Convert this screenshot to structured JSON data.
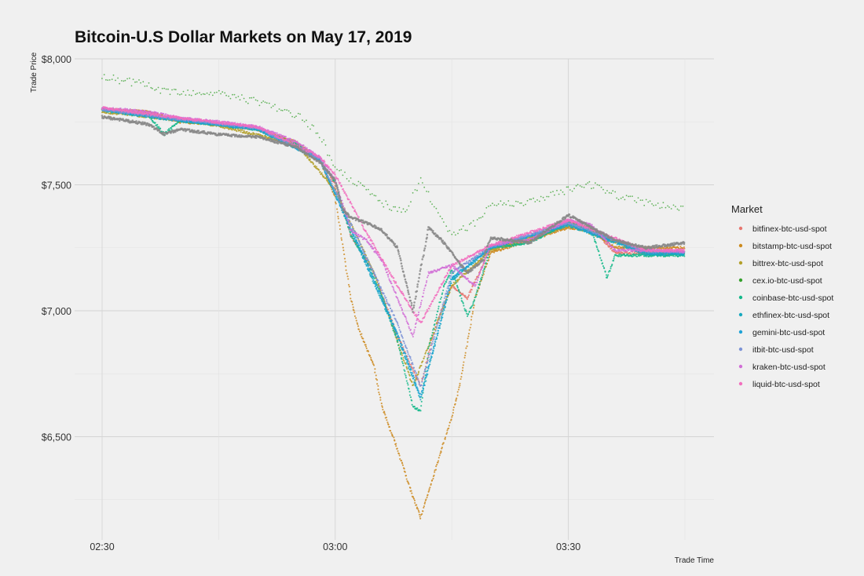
{
  "chart_data": {
    "type": "scatter",
    "title": "Bitcoin-U.S Dollar Markets on May 17, 2019",
    "xlabel": "Trade Time",
    "ylabel": "Trade Price",
    "x_ticks": [
      "02:30",
      "03:00",
      "03:30"
    ],
    "y_ticks": [
      "$6,500",
      "$7,000",
      "$7,500",
      "$8,000"
    ],
    "xlim": [
      "02:30",
      "03:45"
    ],
    "ylim": [
      6150,
      8000
    ],
    "grid": true,
    "legend": {
      "title": "Market",
      "position": "right"
    },
    "series": [
      {
        "name": "bitfinex-btc-usd-spot",
        "color": "#e7766f",
        "points": [
          [
            "02:30",
            7800
          ],
          [
            "02:36",
            7780
          ],
          [
            "02:40",
            7760
          ],
          [
            "02:45",
            7740
          ],
          [
            "02:50",
            7720
          ],
          [
            "02:55",
            7660
          ],
          [
            "02:58",
            7600
          ],
          [
            "03:00",
            7500
          ],
          [
            "03:02",
            7300
          ],
          [
            "03:05",
            7150
          ],
          [
            "03:08",
            6900
          ],
          [
            "03:11",
            6700
          ],
          [
            "03:13",
            6950
          ],
          [
            "03:15",
            7100
          ],
          [
            "03:17",
            7050
          ],
          [
            "03:20",
            7250
          ],
          [
            "03:25",
            7280
          ],
          [
            "03:30",
            7350
          ],
          [
            "03:33",
            7330
          ],
          [
            "03:36",
            7230
          ],
          [
            "03:40",
            7230
          ],
          [
            "03:45",
            7230
          ]
        ]
      },
      {
        "name": "bitstamp-btc-usd-spot",
        "color": "#cc8a1e",
        "points": [
          [
            "02:30",
            7800
          ],
          [
            "02:36",
            7790
          ],
          [
            "02:40",
            7750
          ],
          [
            "02:45",
            7740
          ],
          [
            "02:50",
            7720
          ],
          [
            "02:55",
            7670
          ],
          [
            "02:58",
            7600
          ],
          [
            "03:00",
            7450
          ],
          [
            "03:01",
            7250
          ],
          [
            "03:02",
            7050
          ],
          [
            "03:03",
            6930
          ],
          [
            "03:05",
            6780
          ],
          [
            "03:06",
            6620
          ],
          [
            "03:08",
            6450
          ],
          [
            "03:10",
            6260
          ],
          [
            "03:11",
            6180
          ],
          [
            "03:15",
            6580
          ],
          [
            "03:16",
            6700
          ],
          [
            "03:18",
            7050
          ],
          [
            "03:20",
            7230
          ],
          [
            "03:25",
            7280
          ],
          [
            "03:30",
            7330
          ],
          [
            "03:33",
            7320
          ],
          [
            "03:36",
            7250
          ],
          [
            "03:40",
            7250
          ],
          [
            "03:45",
            7250
          ]
        ]
      },
      {
        "name": "bittrex-btc-usd-spot",
        "color": "#b3a02a",
        "points": [
          [
            "02:30",
            7790
          ],
          [
            "02:36",
            7770
          ],
          [
            "02:45",
            7735
          ],
          [
            "02:55",
            7660
          ],
          [
            "03:00",
            7480
          ],
          [
            "03:05",
            7150
          ],
          [
            "03:10",
            6700
          ],
          [
            "03:15",
            7100
          ],
          [
            "03:20",
            7240
          ],
          [
            "03:30",
            7340
          ],
          [
            "03:40",
            7230
          ],
          [
            "03:45",
            7225
          ]
        ]
      },
      {
        "name": "cex.io-btc-usd-spot",
        "color": "#35a02c",
        "points": [
          [
            "02:30",
            7930
          ],
          [
            "02:35",
            7900
          ],
          [
            "02:38",
            7870
          ],
          [
            "02:45",
            7860
          ],
          [
            "02:50",
            7830
          ],
          [
            "02:55",
            7780
          ],
          [
            "02:58",
            7700
          ],
          [
            "03:00",
            7560
          ],
          [
            "03:03",
            7500
          ],
          [
            "03:06",
            7430
          ],
          [
            "03:09",
            7390
          ],
          [
            "03:11",
            7520
          ],
          [
            "03:13",
            7400
          ],
          [
            "03:15",
            7300
          ],
          [
            "03:18",
            7350
          ],
          [
            "03:20",
            7420
          ],
          [
            "03:25",
            7430
          ],
          [
            "03:30",
            7480
          ],
          [
            "03:33",
            7500
          ],
          [
            "03:36",
            7460
          ],
          [
            "03:40",
            7430
          ],
          [
            "03:45",
            7400
          ]
        ]
      },
      {
        "name": "coinbase-btc-usd-spot",
        "color": "#14b88a",
        "points": [
          [
            "02:30",
            7800
          ],
          [
            "02:36",
            7775
          ],
          [
            "02:38",
            7700
          ],
          [
            "02:40",
            7755
          ],
          [
            "02:45",
            7740
          ],
          [
            "02:50",
            7720
          ],
          [
            "02:55",
            7660
          ],
          [
            "02:58",
            7600
          ],
          [
            "03:00",
            7510
          ],
          [
            "03:02",
            7300
          ],
          [
            "03:04",
            7200
          ],
          [
            "03:06",
            7060
          ],
          [
            "03:08",
            6880
          ],
          [
            "03:10",
            6620
          ],
          [
            "03:11",
            6600
          ],
          [
            "03:12",
            6850
          ],
          [
            "03:14",
            7100
          ],
          [
            "03:15",
            7160
          ],
          [
            "03:17",
            6980
          ],
          [
            "03:18",
            7050
          ],
          [
            "03:20",
            7250
          ],
          [
            "03:25",
            7270
          ],
          [
            "03:30",
            7350
          ],
          [
            "03:33",
            7320
          ],
          [
            "03:35",
            7130
          ],
          [
            "03:36",
            7220
          ],
          [
            "03:40",
            7220
          ],
          [
            "03:45",
            7220
          ]
        ]
      },
      {
        "name": "ethfinex-btc-usd-spot",
        "color": "#17a9bf",
        "points": [
          [
            "02:30",
            7795
          ],
          [
            "02:40",
            7755
          ],
          [
            "02:50",
            7720
          ],
          [
            "02:58",
            7600
          ],
          [
            "03:03",
            7250
          ],
          [
            "03:08",
            6900
          ],
          [
            "03:11",
            6650
          ],
          [
            "03:15",
            7120
          ],
          [
            "03:20",
            7250
          ],
          [
            "03:30",
            7340
          ],
          [
            "03:40",
            7225
          ],
          [
            "03:45",
            7225
          ]
        ]
      },
      {
        "name": "gemini-btc-usd-spot",
        "color": "#1ea2d6",
        "points": [
          [
            "02:30",
            7800
          ],
          [
            "02:40",
            7758
          ],
          [
            "02:50",
            7722
          ],
          [
            "02:58",
            7600
          ],
          [
            "03:03",
            7260
          ],
          [
            "03:08",
            6910
          ],
          [
            "03:11",
            6660
          ],
          [
            "03:15",
            7130
          ],
          [
            "03:20",
            7250
          ],
          [
            "03:30",
            7345
          ],
          [
            "03:40",
            7230
          ],
          [
            "03:45",
            7230
          ]
        ]
      },
      {
        "name": "itbit-btc-usd-spot",
        "color": "#7c93d6",
        "points": [
          [
            "02:30",
            7800
          ],
          [
            "02:40",
            7760
          ],
          [
            "02:50",
            7725
          ],
          [
            "02:58",
            7605
          ],
          [
            "03:03",
            7280
          ],
          [
            "03:08",
            6950
          ],
          [
            "03:11",
            6700
          ],
          [
            "03:15",
            7150
          ],
          [
            "03:20",
            7255
          ],
          [
            "03:30",
            7350
          ],
          [
            "03:40",
            7235
          ],
          [
            "03:45",
            7235
          ]
        ]
      },
      {
        "name": "kraken-btc-usd-spot",
        "color": "#d16ed6",
        "points": [
          [
            "02:30",
            7805
          ],
          [
            "02:36",
            7790
          ],
          [
            "02:40",
            7765
          ],
          [
            "02:45",
            7750
          ],
          [
            "02:50",
            7730
          ],
          [
            "02:55",
            7670
          ],
          [
            "02:58",
            7610
          ],
          [
            "03:00",
            7520
          ],
          [
            "03:02",
            7320
          ],
          [
            "03:04",
            7280
          ],
          [
            "03:06",
            7200
          ],
          [
            "03:08",
            7050
          ],
          [
            "03:10",
            6900
          ],
          [
            "03:12",
            7150
          ],
          [
            "03:15",
            7180
          ],
          [
            "03:18",
            7100
          ],
          [
            "03:20",
            7260
          ],
          [
            "03:25",
            7280
          ],
          [
            "03:30",
            7360
          ],
          [
            "03:33",
            7340
          ],
          [
            "03:36",
            7240
          ],
          [
            "03:40",
            7240
          ],
          [
            "03:45",
            7235
          ]
        ]
      },
      {
        "name": "liquid-btc-usd-spot",
        "color": "#f26fbe",
        "points": [
          [
            "02:30",
            7805
          ],
          [
            "02:40",
            7765
          ],
          [
            "02:50",
            7730
          ],
          [
            "02:58",
            7610
          ],
          [
            "03:00",
            7540
          ],
          [
            "03:04",
            7310
          ],
          [
            "03:08",
            7100
          ],
          [
            "03:11",
            6950
          ],
          [
            "03:15",
            7180
          ],
          [
            "03:20",
            7260
          ],
          [
            "03:30",
            7360
          ],
          [
            "03:40",
            7240
          ],
          [
            "03:45",
            7240
          ]
        ]
      },
      {
        "name": "",
        "color": "#888888",
        "points": [
          [
            "02:30",
            7770
          ],
          [
            "02:36",
            7740
          ],
          [
            "02:38",
            7700
          ],
          [
            "02:40",
            7720
          ],
          [
            "02:45",
            7700
          ],
          [
            "02:50",
            7690
          ],
          [
            "02:55",
            7650
          ],
          [
            "02:58",
            7590
          ],
          [
            "03:00",
            7520
          ],
          [
            "03:01",
            7400
          ],
          [
            "03:02",
            7370
          ],
          [
            "03:04",
            7350
          ],
          [
            "03:06",
            7320
          ],
          [
            "03:08",
            7250
          ],
          [
            "03:10",
            7000
          ],
          [
            "03:12",
            7330
          ],
          [
            "03:14",
            7270
          ],
          [
            "03:15",
            7230
          ],
          [
            "03:17",
            7150
          ],
          [
            "03:19",
            7200
          ],
          [
            "03:20",
            7290
          ],
          [
            "03:25",
            7270
          ],
          [
            "03:30",
            7380
          ],
          [
            "03:33",
            7330
          ],
          [
            "03:36",
            7280
          ],
          [
            "03:40",
            7250
          ],
          [
            "03:45",
            7270
          ]
        ]
      }
    ]
  }
}
